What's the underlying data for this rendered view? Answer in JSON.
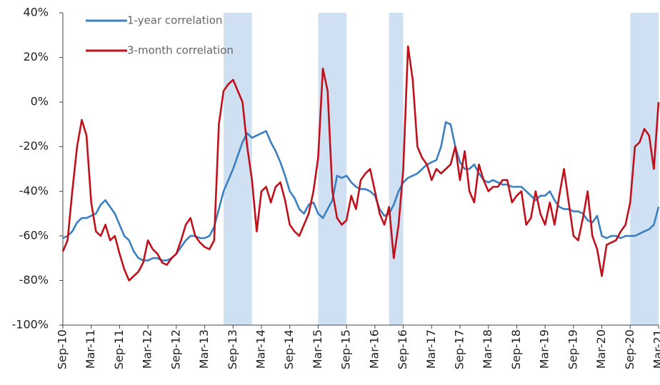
{
  "chart_data": {
    "type": "line",
    "x": [
      "Sep-10",
      "Oct-10",
      "Nov-10",
      "Dec-10",
      "Jan-11",
      "Feb-11",
      "Mar-11",
      "Apr-11",
      "May-11",
      "Jun-11",
      "Jul-11",
      "Aug-11",
      "Sep-11",
      "Oct-11",
      "Nov-11",
      "Dec-11",
      "Jan-12",
      "Feb-12",
      "Mar-12",
      "Apr-12",
      "May-12",
      "Jun-12",
      "Jul-12",
      "Aug-12",
      "Sep-12",
      "Oct-12",
      "Nov-12",
      "Dec-12",
      "Jan-13",
      "Feb-13",
      "Mar-13",
      "Apr-13",
      "May-13",
      "Jun-13",
      "Jul-13",
      "Aug-13",
      "Sep-13",
      "Oct-13",
      "Nov-13",
      "Dec-13",
      "Jan-14",
      "Feb-14",
      "Mar-14",
      "Apr-14",
      "May-14",
      "Jun-14",
      "Jul-14",
      "Aug-14",
      "Sep-14",
      "Oct-14",
      "Nov-14",
      "Dec-14",
      "Jan-15",
      "Feb-15",
      "Mar-15",
      "Apr-15",
      "May-15",
      "Jun-15",
      "Jul-15",
      "Aug-15",
      "Sep-15",
      "Oct-15",
      "Nov-15",
      "Dec-15",
      "Jan-16",
      "Feb-16",
      "Mar-16",
      "Apr-16",
      "May-16",
      "Jun-16",
      "Jul-16",
      "Aug-16",
      "Sep-16",
      "Oct-16",
      "Nov-16",
      "Dec-16",
      "Jan-17",
      "Feb-17",
      "Mar-17",
      "Apr-17",
      "May-17",
      "Jun-17",
      "Jul-17",
      "Aug-17",
      "Sep-17",
      "Oct-17",
      "Nov-17",
      "Dec-17",
      "Jan-18",
      "Feb-18",
      "Mar-18",
      "Apr-18",
      "May-18",
      "Jun-18",
      "Jul-18",
      "Aug-18",
      "Sep-18",
      "Oct-18",
      "Nov-18",
      "Dec-18",
      "Jan-19",
      "Feb-19",
      "Mar-19",
      "Apr-19",
      "May-19",
      "Jun-19",
      "Jul-19",
      "Aug-19",
      "Sep-19",
      "Oct-19",
      "Nov-19",
      "Dec-19",
      "Jan-20",
      "Feb-20",
      "Mar-20",
      "Apr-20",
      "May-20",
      "Jun-20",
      "Jul-20",
      "Aug-20",
      "Sep-20",
      "Oct-20",
      "Nov-20",
      "Dec-20",
      "Jan-21",
      "Feb-21",
      "Mar-21"
    ],
    "xticks": [
      "Sep-10",
      "Mar-11",
      "Sep-11",
      "Mar-12",
      "Sep-12",
      "Mar-13",
      "Sep-13",
      "Mar-14",
      "Sep-14",
      "Mar-15",
      "Sep-15",
      "Mar-16",
      "Sep-16",
      "Mar-17",
      "Sep-17",
      "Mar-18",
      "Sep-18",
      "Mar-19",
      "Sep-19",
      "Mar-20",
      "Sep-20",
      "Mar-21"
    ],
    "series": [
      {
        "name": "1-year correlation",
        "color": "#3a7fc1",
        "values": [
          -61,
          -60,
          -58,
          -54,
          -52,
          -52,
          -51,
          -50,
          -46,
          -44,
          -47,
          -50,
          -55,
          -60,
          -62,
          -67,
          -70,
          -71,
          -71,
          -70,
          -70,
          -71,
          -71,
          -70,
          -68,
          -65,
          -62,
          -60,
          -60,
          -61,
          -61,
          -60,
          -56,
          -48,
          -40,
          -35,
          -30,
          -24,
          -18,
          -14,
          -16,
          -15,
          -14,
          -13,
          -18,
          -22,
          -27,
          -33,
          -40,
          -43,
          -48,
          -50,
          -46,
          -45,
          -50,
          -52,
          -48,
          -44,
          -33,
          -34,
          -33,
          -36,
          -38,
          -39,
          -39,
          -40,
          -42,
          -48,
          -51,
          -50,
          -46,
          -40,
          -36,
          -34,
          -33,
          -32,
          -30,
          -28,
          -27,
          -26,
          -20,
          -9,
          -10,
          -20,
          -27,
          -30,
          -30,
          -28,
          -32,
          -35,
          -36,
          -35,
          -36,
          -37,
          -37,
          -38,
          -38,
          -38,
          -40,
          -42,
          -44,
          -42,
          -42,
          -40,
          -44,
          -47,
          -48,
          -48,
          -49,
          -49,
          -50,
          -53,
          -54,
          -51,
          -60,
          -61,
          -60,
          -60,
          -61,
          -60,
          -60,
          -60,
          -59,
          -58,
          -57,
          -55,
          -47
        ]
      },
      {
        "name": "3-month correlation",
        "color": "#c0101a",
        "values": [
          -67,
          -62,
          -40,
          -20,
          -8,
          -15,
          -45,
          -58,
          -60,
          -55,
          -62,
          -60,
          -68,
          -75,
          -80,
          -78,
          -76,
          -72,
          -62,
          -66,
          -68,
          -72,
          -73,
          -70,
          -68,
          -62,
          -55,
          -52,
          -60,
          -63,
          -65,
          -66,
          -62,
          -10,
          5,
          8,
          10,
          5,
          0,
          -20,
          -35,
          -58,
          -40,
          -38,
          -45,
          -38,
          -36,
          -44,
          -55,
          -58,
          -60,
          -55,
          -50,
          -40,
          -25,
          15,
          5,
          -40,
          -52,
          -55,
          -53,
          -42,
          -48,
          -35,
          -32,
          -30,
          -40,
          -50,
          -55,
          -47,
          -70,
          -55,
          -30,
          25,
          10,
          -20,
          -25,
          -28,
          -35,
          -30,
          -32,
          -30,
          -28,
          -20,
          -35,
          -22,
          -40,
          -45,
          -28,
          -35,
          -40,
          -38,
          -38,
          -35,
          -35,
          -45,
          -42,
          -40,
          -55,
          -52,
          -40,
          -50,
          -55,
          -45,
          -55,
          -42,
          -30,
          -45,
          -60,
          -62,
          -52,
          -40,
          -60,
          -66,
          -78,
          -64,
          -63,
          -62,
          -58,
          -55,
          -45,
          -20,
          -18,
          -12,
          -15,
          -30,
          0
        ]
      }
    ],
    "shaded": [
      {
        "start": "Jul-13",
        "end": "Jan-14"
      },
      {
        "start": "Mar-15",
        "end": "Sep-15"
      },
      {
        "start": "Jun-16",
        "end": "Sep-16"
      },
      {
        "start": "Sep-20",
        "end": "Mar-21"
      }
    ],
    "shade_color": "#cfe0f2",
    "ylim": [
      -100,
      40
    ],
    "yticks": [
      {
        "value": -100,
        "label": "-100%"
      },
      {
        "value": -80,
        "label": "-80%"
      },
      {
        "value": -60,
        "label": "-60%"
      },
      {
        "value": -40,
        "label": "-40%"
      },
      {
        "value": -20,
        "label": "-20%"
      },
      {
        "value": 0,
        "label": "0%"
      },
      {
        "value": 20,
        "label": "20%"
      },
      {
        "value": 40,
        "label": "40%"
      }
    ]
  }
}
